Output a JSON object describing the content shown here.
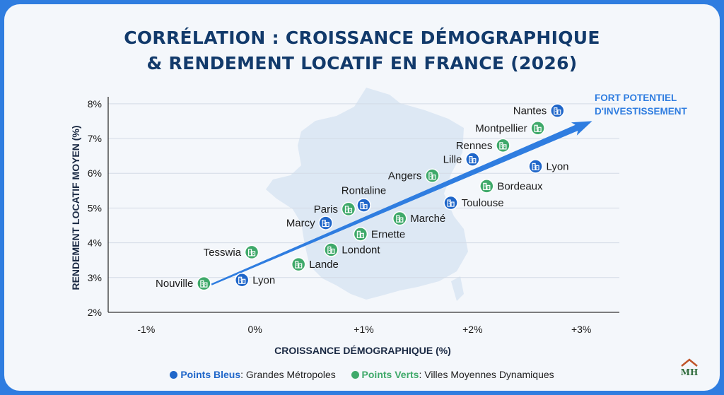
{
  "title_lines": [
    "CORRÉLATION : CROISSANCE DÉMOGRAPHIQUE",
    "& RENDEMENT LOCATIF EN FRANCE (2026)"
  ],
  "chart_data": {
    "type": "scatter",
    "title": "CORRÉLATION : CROISSANCE DÉMOGRAPHIQUE & RENDEMENT LOCATIF EN FRANCE (2026)",
    "xlabel": "CROISSANCE DÉMOGRAPHIQUE (%)",
    "ylabel": "RENDEMENT LOCATIF MOYEN (%)",
    "xlim": [
      -1.35,
      3.35
    ],
    "ylim": [
      2,
      8.2
    ],
    "x_ticks": [
      -1,
      0,
      1,
      2,
      3
    ],
    "x_tick_labels": [
      "-1%",
      "0%",
      "+1%",
      "+2%",
      "+3%"
    ],
    "y_ticks": [
      2,
      3,
      4,
      5,
      6,
      7,
      8
    ],
    "y_tick_labels": [
      "2%",
      "3%",
      "4%",
      "5%",
      "6%",
      "7%",
      "8%"
    ],
    "grid": true,
    "series": [
      {
        "name": "Points Bleus",
        "color": "#1f66c9",
        "points": [
          {
            "label": "Nantes",
            "x": 2.78,
            "y": 7.8
          },
          {
            "label": "Lille",
            "x": 2.0,
            "y": 6.4
          },
          {
            "label": "Lyon",
            "x": 2.58,
            "y": 6.2
          },
          {
            "label": "Toulouse",
            "x": 1.8,
            "y": 5.15
          },
          {
            "label": "Rontaline",
            "x": 1.0,
            "y": 5.08
          },
          {
            "label": "Marcy",
            "x": 0.65,
            "y": 4.57
          },
          {
            "label": "Lyon",
            "x": -0.12,
            "y": 2.93
          }
        ]
      },
      {
        "name": "Points Verts",
        "color": "#3fa96a",
        "points": [
          {
            "label": "Montpellier",
            "x": 2.6,
            "y": 7.3
          },
          {
            "label": "Rennes",
            "x": 2.28,
            "y": 6.8
          },
          {
            "label": "Angers",
            "x": 1.63,
            "y": 5.93
          },
          {
            "label": "Bordeaux",
            "x": 2.13,
            "y": 5.63
          },
          {
            "label": "Paris",
            "x": 0.86,
            "y": 4.97
          },
          {
            "label": "Marché",
            "x": 1.33,
            "y": 4.7
          },
          {
            "label": "Ernette",
            "x": 0.97,
            "y": 4.25
          },
          {
            "label": "Londont",
            "x": 0.7,
            "y": 3.8
          },
          {
            "label": "Tesswia",
            "x": -0.03,
            "y": 3.73
          },
          {
            "label": "Lande",
            "x": 0.4,
            "y": 3.38
          },
          {
            "label": "Nouville",
            "x": -0.47,
            "y": 2.83
          }
        ]
      }
    ],
    "trend_arrow": {
      "from": {
        "x": -0.4,
        "y": 2.8
      },
      "to": {
        "x": 3.1,
        "y": 7.5
      }
    },
    "annotation": [
      "FORT POTENTIEL",
      "D'INVESTISSEMENT"
    ]
  },
  "legend": [
    {
      "name": "Points Bleus",
      "desc": ": Grandes Métropoles",
      "color": "#1f66c9"
    },
    {
      "name": "Points Verts",
      "desc": ": Villes Moyennes Dynamiques",
      "color": "#3fa96a"
    }
  ],
  "logo_text": "MH"
}
